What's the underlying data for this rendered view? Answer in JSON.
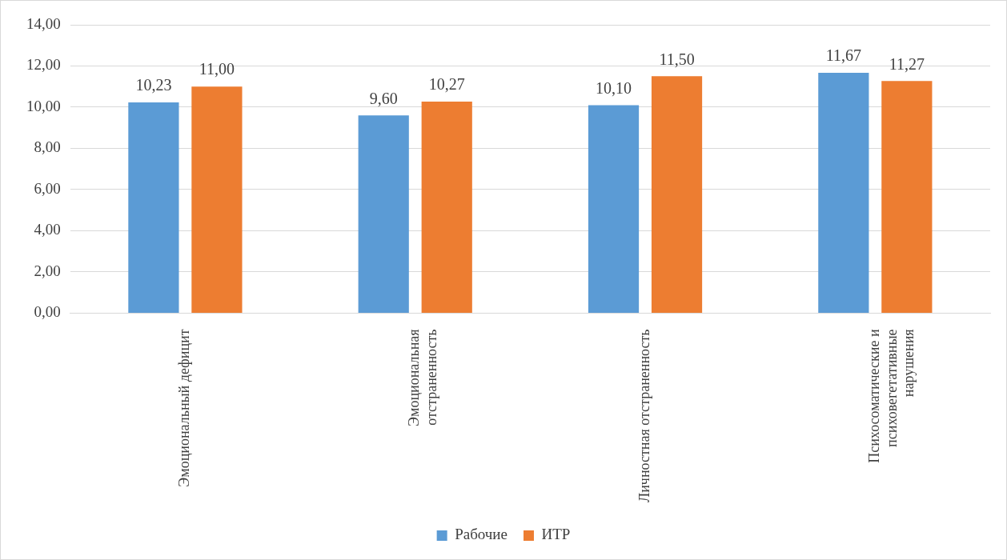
{
  "chart_data": {
    "type": "bar",
    "categories": [
      "Эмоциональный дефицит",
      "Эмоциональная отстраненность",
      "Личностная отстраненность",
      "Психосоматические и психовегетативные нарушения"
    ],
    "series": [
      {
        "name": "Рабочие",
        "color": "#5b9bd5",
        "values": [
          10.23,
          9.6,
          10.1,
          11.67
        ],
        "value_labels": [
          "10,23",
          "9,60",
          "10,10",
          "11,67"
        ]
      },
      {
        "name": "ИТР",
        "color": "#ed7d31",
        "values": [
          11.0,
          10.27,
          11.5,
          11.27
        ],
        "value_labels": [
          "11,00",
          "10,27",
          "11,50",
          "11,27"
        ]
      }
    ],
    "ylim": [
      0,
      14
    ],
    "yticks": [
      {
        "value": 0,
        "label": "0,00"
      },
      {
        "value": 2,
        "label": "2,00"
      },
      {
        "value": 4,
        "label": "4,00"
      },
      {
        "value": 6,
        "label": "6,00"
      },
      {
        "value": 8,
        "label": "8,00"
      },
      {
        "value": 10,
        "label": "10,00"
      },
      {
        "value": 12,
        "label": "12,00"
      },
      {
        "value": 14,
        "label": "14,00"
      }
    ],
    "grid": "y",
    "legend": "bottom"
  }
}
